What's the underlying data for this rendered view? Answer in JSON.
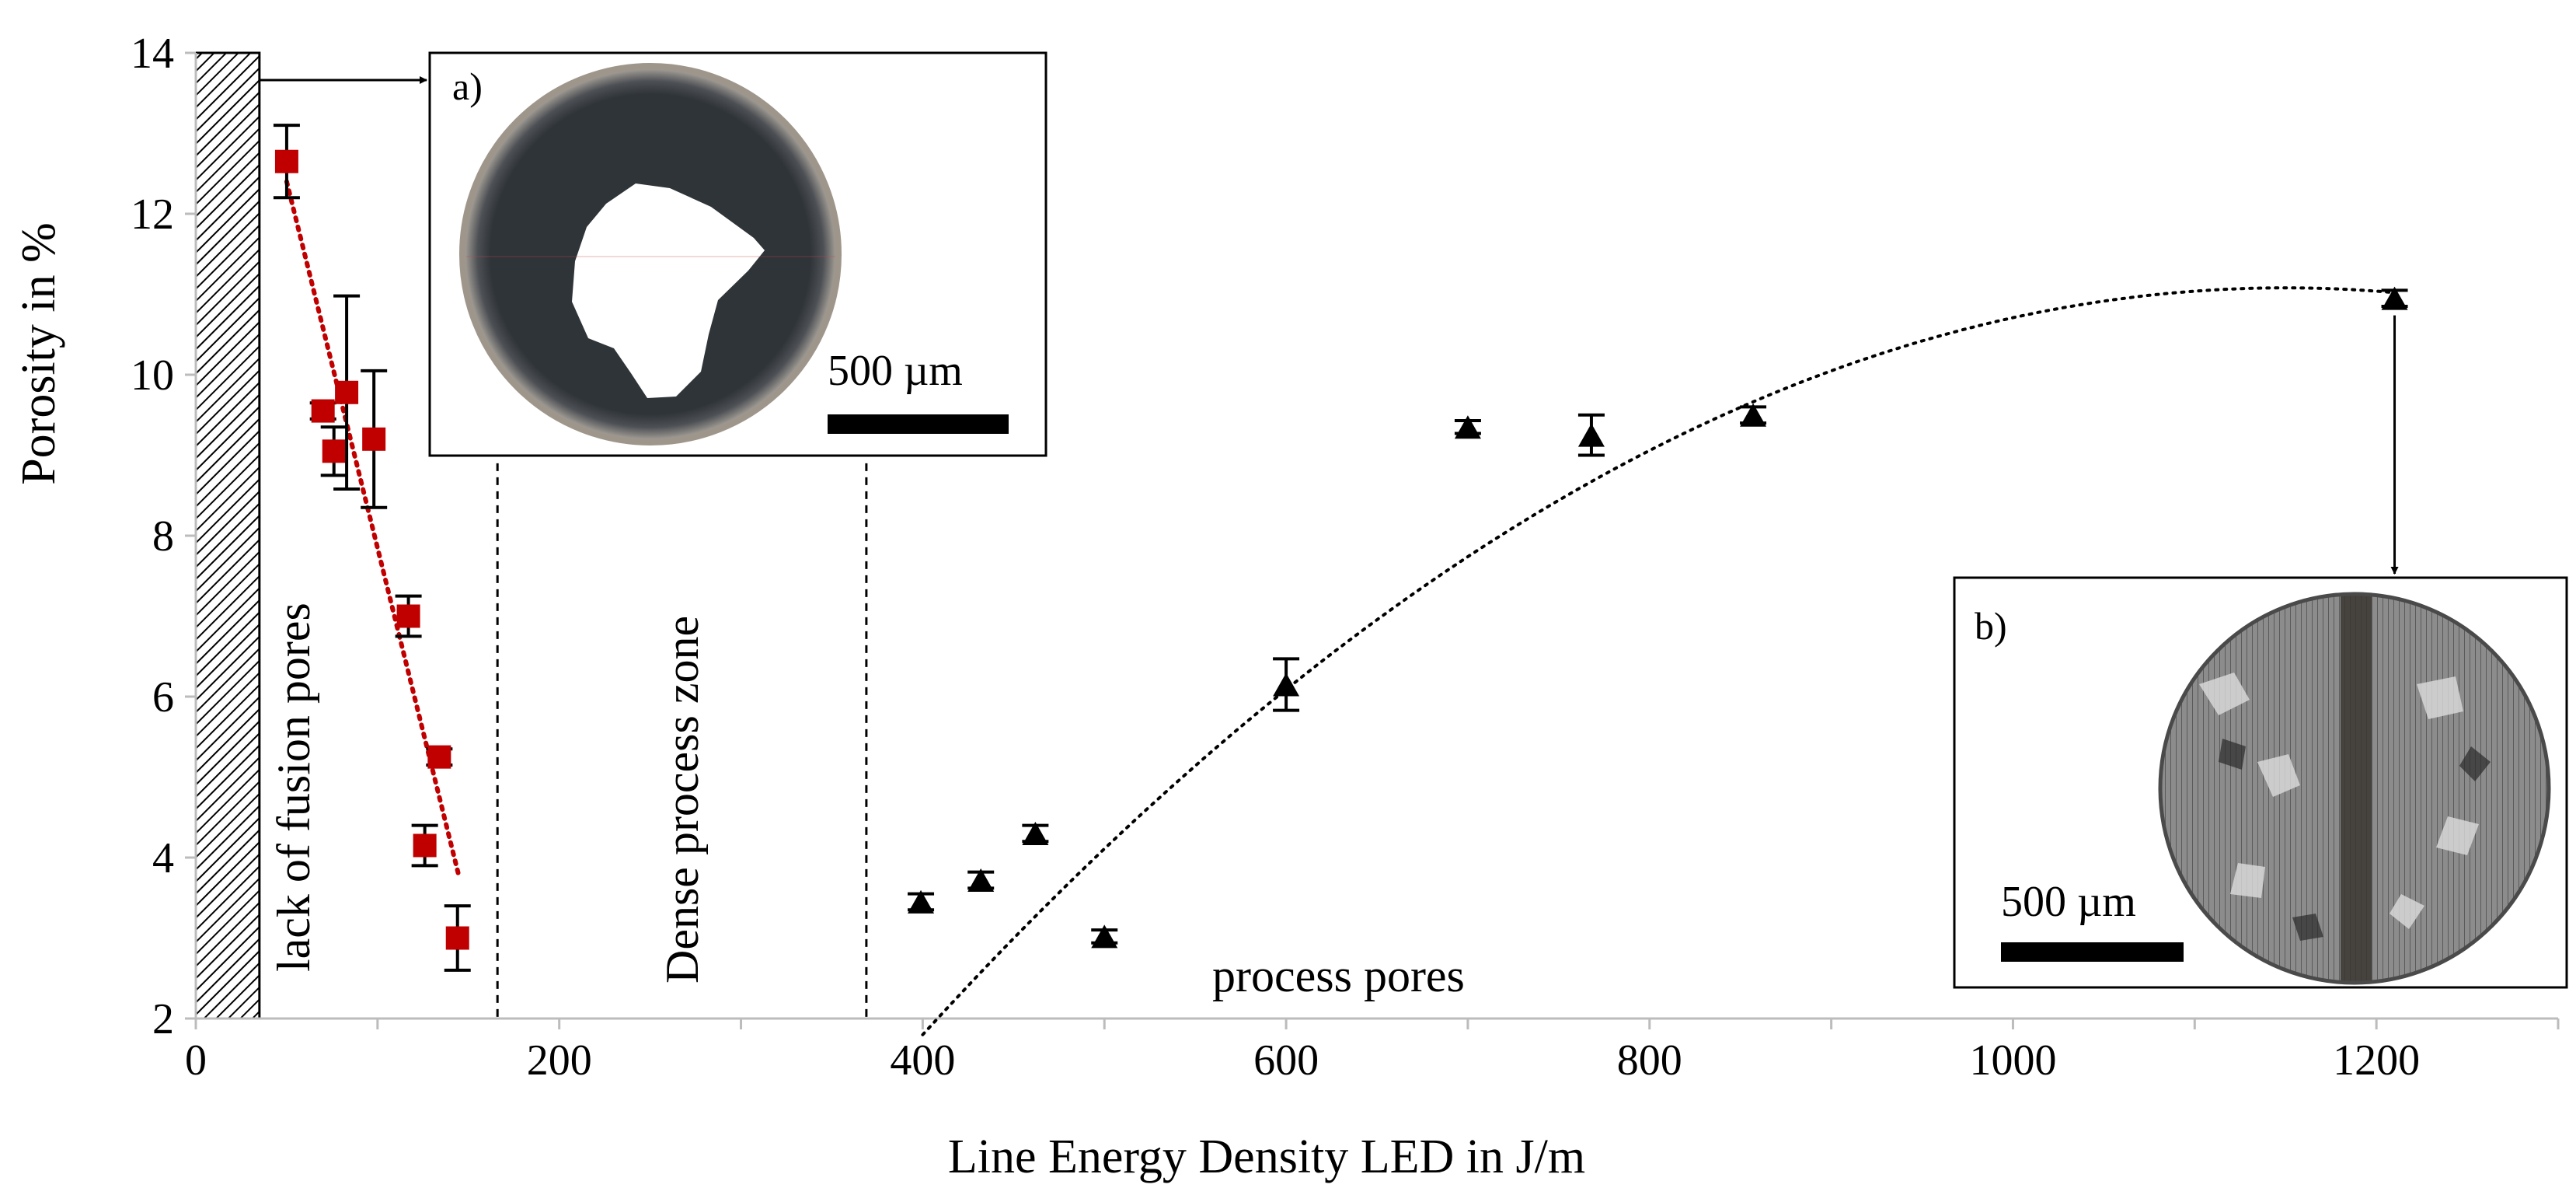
{
  "chart_data": {
    "type": "scatter",
    "title": "",
    "xlabel": "Line Energy Density LED in J/m",
    "ylabel": "Porosity in %",
    "xlim": [
      0,
      1300
    ],
    "ylim": [
      2,
      14
    ],
    "x_ticks": [
      0,
      200,
      400,
      600,
      800,
      1000,
      1200
    ],
    "y_ticks": [
      2,
      4,
      6,
      8,
      10,
      12,
      14
    ],
    "series": [
      {
        "name": "lack of fusion pores",
        "color": "#c00000",
        "marker": "square",
        "points": [
          {
            "x": 50,
            "y": 12.65,
            "err": 0.45
          },
          {
            "x": 70,
            "y": 9.55,
            "err": 0.1
          },
          {
            "x": 76,
            "y": 9.05,
            "err": 0.3
          },
          {
            "x": 83,
            "y": 9.78,
            "err": 1.2
          },
          {
            "x": 98,
            "y": 9.2,
            "err": 0.85
          },
          {
            "x": 117,
            "y": 7.0,
            "err": 0.25
          },
          {
            "x": 126,
            "y": 4.15,
            "err": 0.25
          },
          {
            "x": 134,
            "y": 5.25,
            "err": 0.1
          },
          {
            "x": 144,
            "y": 3.0,
            "err": 0.4
          }
        ],
        "trend": {
          "kind": "linear",
          "from": [
            50,
            12.4
          ],
          "to": [
            145,
            3.75
          ]
        }
      },
      {
        "name": "process pores",
        "color": "#000000",
        "marker": "triangle",
        "points": [
          {
            "x": 399,
            "y": 3.45,
            "err": 0.1
          },
          {
            "x": 432,
            "y": 3.72,
            "err": 0.1
          },
          {
            "x": 462,
            "y": 4.3,
            "err": 0.1
          },
          {
            "x": 500,
            "y": 3.02,
            "err": 0.08
          },
          {
            "x": 600,
            "y": 6.15,
            "err": 0.32
          },
          {
            "x": 700,
            "y": 9.35,
            "err": 0.08
          },
          {
            "x": 768,
            "y": 9.25,
            "err": 0.25
          },
          {
            "x": 857,
            "y": 9.5,
            "err": 0.1
          },
          {
            "x": 1210,
            "y": 10.95,
            "err": 0.1
          }
        ],
        "trend": {
          "kind": "quadratic",
          "from_x": 400,
          "to_x": 1210,
          "vertex": [
            1150,
            11.08
          ],
          "a": -1.65e-05
        }
      }
    ],
    "zone_lines_x": [
      166,
      369
    ],
    "hatched_zone_x": [
      0,
      35
    ],
    "annotations": {
      "lack_of_fusion": "lack of  fusion pores",
      "dense_zone": "Dense process zone",
      "process_pores": "process pores"
    },
    "insets": [
      {
        "label": "a)",
        "scale_bar": "500 µm",
        "points_to": {
          "x": 35,
          "y": 14
        }
      },
      {
        "label": "b)",
        "scale_bar": "500 µm",
        "points_to": {
          "x": 1210,
          "y": 10.95
        }
      }
    ]
  }
}
